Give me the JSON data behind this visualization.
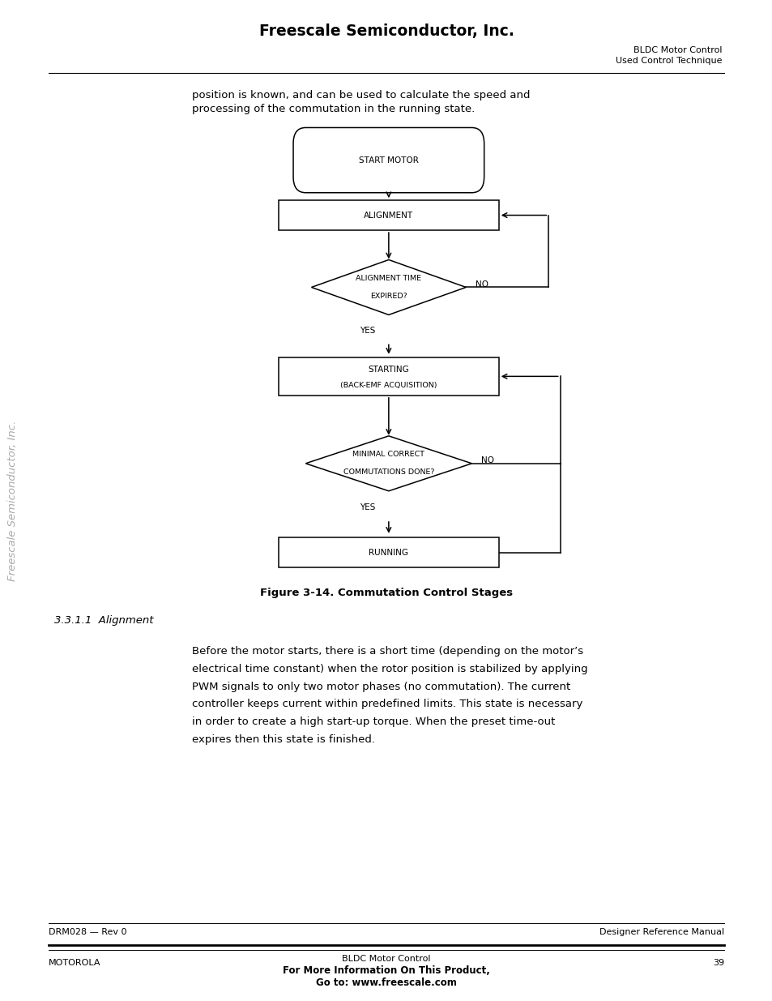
{
  "header_title": "Freescale Semiconductor, Inc.",
  "header_right_line1": "BLDC Motor Control",
  "header_right_line2": "Used Control Technique",
  "intro_text_line1": "position is known, and can be used to calculate the speed and",
  "intro_text_line2": "processing of the commutation in the running state.",
  "figure_caption": "Figure 3-14. Commutation Control Stages",
  "section_title": "3.3.1.1  Alignment",
  "body_text": [
    "Before the motor starts, there is a short time (depending on the motor’s",
    "electrical time constant) when the rotor position is stabilized by applying",
    "PWM signals to only two motor phases (no commutation). The current",
    "controller keeps current within predefined limits. This state is necessary",
    "in order to create a high start-up torque. When the preset time-out",
    "expires then this state is finished."
  ],
  "footer_left": "DRM028 — Rev 0",
  "footer_right": "Designer Reference Manual",
  "footer_bottom_left": "MOTOROLA",
  "footer_bottom_center1": "BLDC Motor Control",
  "footer_bottom_center2": "For More Information On This Product,",
  "footer_bottom_center3": "Go to: www.freescale.com",
  "footer_bottom_right": "39",
  "sidebar_text": "Freescale Semiconductor, Inc.",
  "bg_color": "#ffffff",
  "text_color": "#000000"
}
